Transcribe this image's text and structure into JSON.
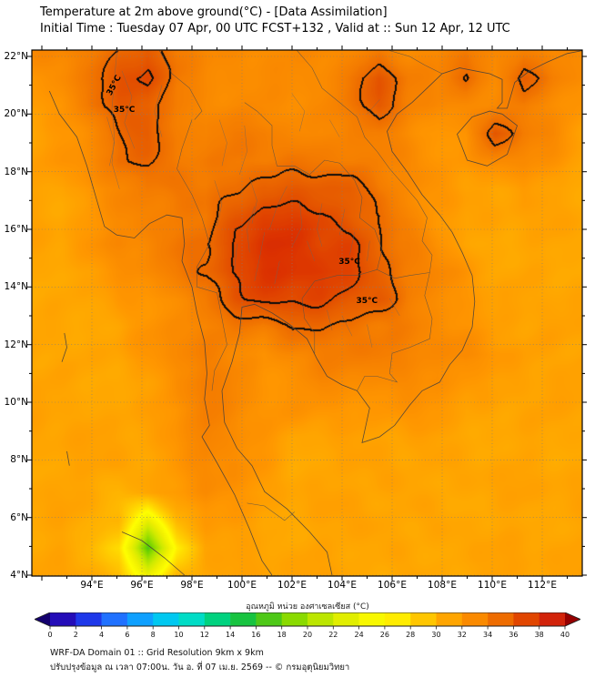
{
  "header": {
    "title": "Temperature at 2m above ground(°C) - [Data Assimilation]",
    "subtitle": "Initial Time : Tuesday 07 Apr, 00 UTC FCST+132 , Valid at :: Sun 12 Apr, 12 UTC"
  },
  "footer": {
    "line1": "WRF-DA Domain 01 :: Grid Resolution 9km x 9km",
    "line2": "ปรับปรุงข้อมูล ณ เวลา 07:00น. วัน อ. ที่ 07 เม.ย. 2569 -- © กรมอุตุนิยมวิทยา"
  },
  "chart_data": {
    "type": "heatmap",
    "title": "Temperature at 2m above ground(°C) - [Data Assimilation]",
    "axes": {
      "lon_ticks": [
        94,
        96,
        98,
        100,
        102,
        104,
        106,
        108,
        110,
        112
      ],
      "lat_ticks": [
        4,
        6,
        8,
        10,
        12,
        14,
        16,
        18,
        20,
        22
      ],
      "lon_suffix": "°E",
      "lat_suffix": "°N",
      "lon_range": [
        91.6,
        113.6
      ],
      "lat_range": [
        3.97,
        22.22
      ],
      "grid": "dotted"
    },
    "colorbar": {
      "label": "อุณหภูมิ หน่วย องศาเซลเซียส (°C)",
      "ticks": [
        0,
        2,
        4,
        6,
        8,
        10,
        12,
        14,
        16,
        18,
        20,
        22,
        24,
        26,
        28,
        30,
        32,
        34,
        36,
        38,
        40
      ],
      "under": "#14006e",
      "over": "#960000",
      "stops": [
        [
          0,
          "#2e009e"
        ],
        [
          2,
          "#1a1ad2"
        ],
        [
          4,
          "#2255ff"
        ],
        [
          6,
          "#1e8cff"
        ],
        [
          8,
          "#00b4ff"
        ],
        [
          10,
          "#00dce1"
        ],
        [
          12,
          "#00dcaa"
        ],
        [
          14,
          "#00c853"
        ],
        [
          16,
          "#2dbe2d"
        ],
        [
          18,
          "#6ed200"
        ],
        [
          20,
          "#a5e100"
        ],
        [
          22,
          "#d2eb00"
        ],
        [
          24,
          "#f0f000"
        ],
        [
          26,
          "#ffff00"
        ],
        [
          28,
          "#ffd800"
        ],
        [
          30,
          "#ffb400"
        ],
        [
          32,
          "#ff9600"
        ],
        [
          34,
          "#f57d00"
        ],
        [
          36,
          "#e65a00"
        ],
        [
          38,
          "#dc3200"
        ],
        [
          40,
          "#c81414"
        ]
      ]
    },
    "contours": {
      "thresholds": [
        35,
        36.6
      ],
      "labels": [
        {
          "text": "35°C",
          "lon": 94.9,
          "lat": 21.0,
          "rot": -62
        },
        {
          "text": "35°C",
          "lon": 95.3,
          "lat": 20.15,
          "rot": 0
        },
        {
          "text": "35°C",
          "lon": 104.3,
          "lat": 14.85,
          "rot": 0
        },
        {
          "text": "35°C",
          "lon": 105.0,
          "lat": 13.5,
          "rot": 0
        }
      ]
    },
    "grid": {
      "lon_min": 91.6,
      "lon_max": 113.6,
      "lat_min": 3.97,
      "lat_max": 22.22,
      "units": "°C",
      "values": [
        [
          33,
          33,
          34,
          35,
          36,
          34,
          33,
          33,
          33,
          33,
          33,
          33,
          34,
          33,
          33,
          34,
          33,
          34,
          33,
          33
        ],
        [
          32,
          33,
          34,
          36,
          37,
          34,
          33,
          33,
          33,
          33,
          33,
          34,
          36,
          34,
          33,
          35,
          33,
          36,
          34,
          33
        ],
        [
          32,
          32,
          34,
          36,
          36,
          34,
          33,
          33,
          33,
          33,
          33,
          34,
          36,
          34,
          33,
          33,
          33,
          34,
          33,
          32
        ],
        [
          31,
          32,
          33,
          35,
          36,
          34,
          33,
          34,
          34,
          33,
          33,
          34,
          34,
          33,
          32,
          32,
          36,
          34,
          33,
          31
        ],
        [
          31,
          32,
          33,
          35,
          35,
          34,
          34,
          34,
          34,
          34,
          34,
          34,
          34,
          33,
          32,
          32,
          33,
          33,
          32,
          31
        ],
        [
          31,
          31,
          32,
          33,
          34,
          34,
          34,
          35,
          36,
          36,
          36,
          36,
          34,
          33,
          32,
          31,
          31,
          32,
          31,
          31
        ],
        [
          31,
          31,
          32,
          33,
          33,
          34,
          34,
          36,
          37,
          37,
          37,
          36,
          35,
          33,
          32,
          31,
          31,
          31,
          31,
          31
        ],
        [
          31,
          31,
          32,
          33,
          33,
          34,
          35,
          37,
          38,
          38,
          37,
          37,
          35,
          34,
          32,
          31,
          31,
          31,
          31,
          31
        ],
        [
          31,
          31,
          31,
          32,
          33,
          34,
          35,
          37,
          38,
          38,
          38,
          37,
          35,
          34,
          33,
          32,
          31,
          31,
          31,
          31
        ],
        [
          31,
          31,
          31,
          32,
          32,
          33,
          34,
          36,
          37,
          37,
          37,
          36,
          36,
          34,
          33,
          32,
          31,
          31,
          31,
          31
        ],
        [
          31,
          31,
          31,
          31,
          32,
          33,
          33,
          34,
          34,
          35,
          35,
          35,
          34,
          34,
          33,
          32,
          31,
          31,
          31,
          31
        ],
        [
          31,
          31,
          31,
          31,
          32,
          33,
          34,
          33,
          32,
          33,
          34,
          34,
          34,
          33,
          33,
          33,
          32,
          31,
          31,
          31
        ],
        [
          31,
          31,
          31,
          31,
          31,
          33,
          34,
          33,
          32,
          32,
          33,
          33,
          33,
          33,
          33,
          32,
          31,
          31,
          31,
          31
        ],
        [
          31,
          31,
          31,
          31,
          31,
          32,
          34,
          33,
          32,
          32,
          32,
          32,
          32,
          32,
          32,
          31,
          31,
          31,
          31,
          31
        ],
        [
          31,
          31,
          31,
          31,
          31,
          32,
          34,
          33,
          32,
          31,
          31,
          31,
          31,
          31,
          31,
          31,
          31,
          31,
          31,
          31
        ],
        [
          31,
          31,
          31,
          31,
          31,
          32,
          33,
          33,
          32,
          31,
          31,
          31,
          31,
          31,
          31,
          31,
          31,
          31,
          31,
          31
        ],
        [
          31,
          31,
          31,
          30,
          31,
          32,
          33,
          32,
          31,
          31,
          31,
          31,
          31,
          31,
          31,
          31,
          31,
          31,
          31,
          31
        ],
        [
          31,
          31,
          30,
          30,
          24,
          30,
          32,
          32,
          31,
          31,
          31,
          31,
          31,
          31,
          31,
          31,
          31,
          31,
          31,
          31
        ],
        [
          31,
          31,
          30,
          28,
          17,
          27,
          31,
          31,
          31,
          31,
          31,
          31,
          31,
          31,
          31,
          31,
          31,
          31,
          31,
          31
        ],
        [
          31,
          31,
          31,
          30,
          24,
          30,
          31,
          31,
          31,
          31,
          31,
          31,
          31,
          31,
          31,
          31,
          31,
          31,
          31,
          31
        ]
      ]
    },
    "boundaries": {
      "coast": [
        [
          92.3,
          20.8,
          92.7,
          20.0,
          93.4,
          19.2,
          93.8,
          18.2,
          94.2,
          17.0,
          94.5,
          16.1,
          95.0,
          15.8,
          95.7,
          15.7,
          96.3,
          16.2,
          97.0,
          16.5,
          97.6,
          16.4,
          97.7,
          15.5,
          97.6,
          14.9,
          98.0,
          14.0,
          98.2,
          13.1,
          98.5,
          12.1,
          98.6,
          11.0,
          98.5,
          10.1,
          98.7,
          9.2,
          98.4,
          8.8,
          99.0,
          7.9,
          99.7,
          6.8,
          100.3,
          5.6,
          100.8,
          4.5,
          101.2,
          4.0
        ],
        [
          103.6,
          4.0,
          103.4,
          4.8,
          102.7,
          5.5,
          101.8,
          6.3,
          100.9,
          6.9,
          100.4,
          7.8,
          99.8,
          8.4,
          99.3,
          9.3,
          99.2,
          10.4,
          99.6,
          11.4,
          99.9,
          12.4,
          100.0,
          13.3,
          100.5,
          13.4,
          101.2,
          13.1,
          101.9,
          12.7,
          102.6,
          12.2,
          103.0,
          11.5,
          103.4,
          10.9,
          104.0,
          10.6,
          104.6,
          10.4,
          105.1,
          9.8,
          104.9,
          9.0,
          104.8,
          8.6,
          105.5,
          8.8,
          106.1,
          9.2,
          106.7,
          9.9,
          107.2,
          10.4,
          107.9,
          10.7,
          108.3,
          11.3,
          108.8,
          11.8,
          109.2,
          12.6,
          109.3,
          13.5,
          109.2,
          14.4,
          108.8,
          15.2,
          108.4,
          15.9,
          107.9,
          16.5,
          107.2,
          17.2,
          106.6,
          18.0,
          106.0,
          18.7,
          105.8,
          19.4,
          106.2,
          20.0,
          106.8,
          20.4,
          107.4,
          20.9,
          108.0,
          21.4,
          108.7,
          21.6,
          109.3,
          21.5,
          109.9,
          21.4,
          110.4,
          21.2,
          110.4,
          20.4,
          110.2,
          20.2,
          110.6,
          20.2,
          110.9,
          21.1,
          111.5,
          21.5,
          112.2,
          21.8,
          113.0,
          22.1,
          113.6,
          22.2
        ],
        [
          110.4,
          20.0,
          111.0,
          19.6,
          110.6,
          18.6,
          109.8,
          18.2,
          109.0,
          18.4,
          108.6,
          19.3,
          109.2,
          19.9,
          109.9,
          20.1,
          110.4,
          20.0
        ],
        [
          95.2,
          5.5,
          96.0,
          5.2,
          96.9,
          4.6,
          97.7,
          4.0
        ],
        [
          92.9,
          12.4,
          93.0,
          11.9,
          92.8,
          11.4
        ],
        [
          93.0,
          8.3,
          93.1,
          7.8
        ]
      ],
      "borders": [
        [
          98.0,
          19.8,
          97.6,
          18.8,
          97.4,
          18.1,
          98.0,
          17.2,
          98.4,
          16.4,
          98.7,
          15.5,
          98.2,
          14.7,
          98.2,
          14.0,
          99.0,
          13.8,
          99.2,
          12.9,
          99.4,
          12.0,
          98.9,
          11.1,
          98.8,
          10.4
        ],
        [
          100.1,
          20.4,
          100.6,
          20.1,
          101.2,
          19.6,
          101.2,
          18.9,
          101.4,
          18.2,
          102.1,
          18.2,
          102.7,
          17.9,
          103.3,
          18.4,
          103.9,
          18.3,
          104.5,
          17.7,
          104.8,
          17.1,
          104.7,
          16.4,
          105.3,
          16.0,
          105.6,
          15.3,
          105.4,
          14.6
        ],
        [
          105.4,
          14.6,
          104.6,
          14.4,
          103.8,
          14.4,
          102.9,
          14.2,
          102.4,
          13.6,
          102.5,
          12.9,
          102.9,
          12.4,
          102.9,
          11.7
        ],
        [
          102.2,
          22.2,
          102.8,
          21.6,
          103.2,
          20.9,
          103.9,
          20.4,
          104.6,
          19.9,
          104.9,
          19.2,
          105.4,
          18.7,
          105.9,
          18.1,
          106.5,
          17.5,
          107.0,
          17.0,
          107.4,
          16.4
        ],
        [
          107.4,
          16.4,
          107.2,
          15.6,
          107.6,
          15.1,
          107.5,
          14.5,
          107.3,
          13.7,
          107.6,
          12.9,
          107.5,
          12.2,
          106.7,
          11.9,
          106.0,
          11.7,
          105.9,
          11.0,
          106.2,
          10.7,
          105.4,
          10.9,
          104.9,
          10.9,
          104.6,
          10.4
        ],
        [
          105.4,
          14.6,
          106.1,
          14.3,
          106.7,
          14.4,
          107.5,
          14.5
        ],
        [
          105.9,
          22.2,
          106.7,
          22.0,
          107.3,
          21.7,
          108.0,
          21.4
        ],
        [
          100.2,
          6.5,
          100.9,
          6.4,
          101.7,
          5.9,
          102.1,
          6.2
        ],
        [
          96.7,
          22.2,
          97.2,
          21.4,
          97.9,
          20.9,
          98.4,
          20.1,
          98.1,
          19.8
        ]
      ],
      "provinces": [
        [
          95.2,
          21.5,
          95.6,
          20.6,
          95.3,
          19.7,
          95.7,
          18.8
        ],
        [
          96.8,
          21.0,
          96.5,
          20.1,
          96.8,
          19.2
        ],
        [
          94.6,
          19.9,
          94.9,
          19.0,
          94.7,
          18.2
        ],
        [
          95.0,
          22.2,
          94.9,
          21.2,
          94.8,
          20.2,
          94.9,
          19.2,
          94.8,
          18.3,
          95.1,
          17.4
        ],
        [
          99.1,
          19.8,
          99.4,
          19.0,
          99.2,
          18.2
        ],
        [
          100.1,
          19.6,
          100.2,
          18.7,
          99.9,
          17.9
        ],
        [
          100.3,
          17.8,
          100.6,
          17.0,
          100.4,
          16.2
        ],
        [
          98.9,
          17.7,
          99.2,
          16.9,
          99.0,
          16.1
        ],
        [
          101.8,
          17.5,
          101.4,
          16.8,
          101.1,
          16.0
        ],
        [
          102.3,
          17.0,
          102.4,
          16.1,
          102.0,
          15.4
        ],
        [
          103.2,
          16.9,
          103.0,
          16.0,
          103.2,
          15.4
        ],
        [
          104.1,
          16.7,
          103.9,
          15.8
        ],
        [
          100.9,
          15.9,
          100.7,
          15.0,
          100.5,
          14.2
        ],
        [
          99.8,
          15.5,
          99.7,
          14.6
        ],
        [
          101.5,
          14.9,
          101.3,
          14.1
        ],
        [
          102.6,
          15.6,
          102.9,
          14.9
        ],
        [
          104.5,
          15.9,
          104.3,
          15.1
        ],
        [
          105.1,
          15.6,
          105.0,
          14.9
        ],
        [
          102.0,
          20.7,
          102.5,
          20.1,
          102.3,
          19.4
        ],
        [
          103.5,
          19.8,
          103.9,
          19.2
        ],
        [
          105.5,
          20.5,
          105.0,
          20.0
        ],
        [
          104.0,
          13.0,
          104.4,
          12.3
        ],
        [
          103.4,
          13.2,
          103.6,
          12.5
        ],
        [
          105.0,
          12.7,
          105.2,
          11.9
        ],
        [
          105.9,
          13.6,
          106.3,
          13.0
        ],
        [
          100.5,
          16.8,
          100.2,
          16.0,
          100.3,
          15.2
        ]
      ]
    }
  }
}
